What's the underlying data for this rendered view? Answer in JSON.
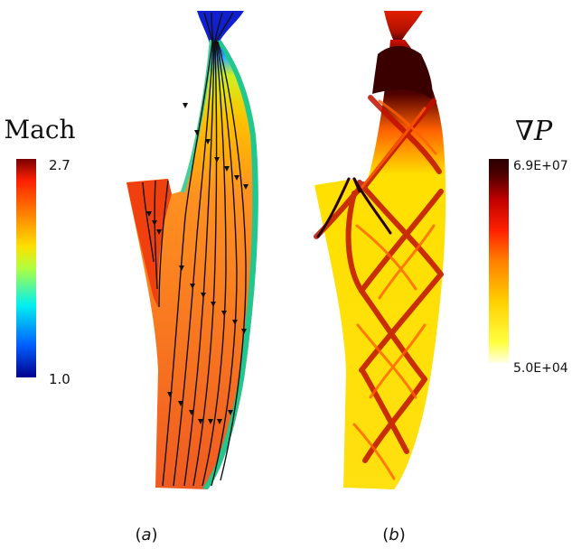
{
  "panels": {
    "a": {
      "caption_prefix": "(",
      "caption_letter": "a",
      "caption_suffix": ")"
    },
    "b": {
      "caption_prefix": "(",
      "caption_letter": "b",
      "caption_suffix": ")"
    }
  },
  "colorbars": {
    "mach": {
      "title": "Mach",
      "max_label": "2.7",
      "min_label": "1.0",
      "colors": [
        "#00008f",
        "#0060ff",
        "#00f0f0",
        "#b0ff40",
        "#ffe000",
        "#ff8000",
        "#ff2000",
        "#7a0000"
      ]
    },
    "pressure_gradient": {
      "title_nabla": "∇",
      "title_var": "P",
      "max_label": "6.9E+07",
      "min_label": "5.0E+04",
      "colors": [
        "#ffffe0",
        "#ffff40",
        "#ffd000",
        "#ff8000",
        "#ff2000",
        "#c00000",
        "#500000",
        "#2a0000"
      ]
    }
  }
}
